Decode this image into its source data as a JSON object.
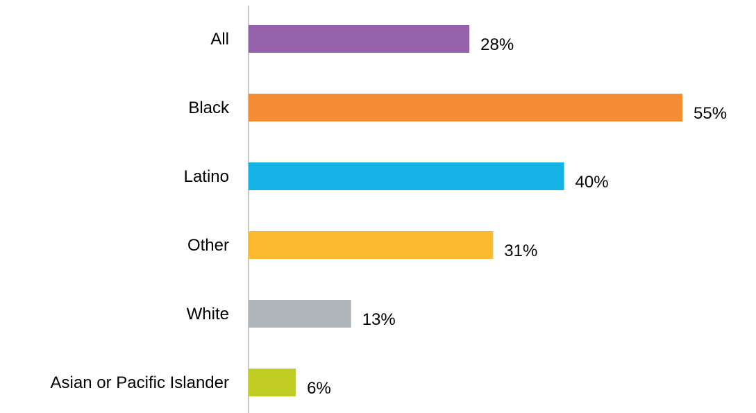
{
  "chart_data": {
    "type": "bar",
    "orientation": "horizontal",
    "categories": [
      "All",
      "Black",
      "Latino",
      "Other",
      "White",
      "Asian or Pacific Islander"
    ],
    "values": [
      28,
      55,
      40,
      31,
      13,
      6
    ],
    "value_labels": [
      "28%",
      "55%",
      "40%",
      "31%",
      "13%",
      "6%"
    ],
    "colors": [
      "#9461aa",
      "#f48c33",
      "#15b2e6",
      "#fbba2f",
      "#aeb6bb",
      "#c1cc22"
    ],
    "unit": "%",
    "title": "",
    "xlabel": "",
    "ylabel": "",
    "xlim": [
      0,
      55
    ],
    "grid": false,
    "legend": false
  }
}
